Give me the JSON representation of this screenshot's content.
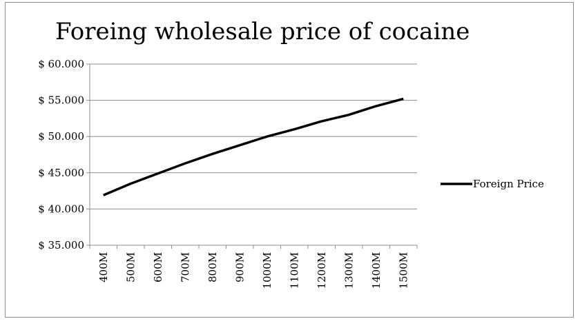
{
  "chart_data": {
    "type": "line",
    "title": "Foreing wholesale price of cocaine",
    "xlabel": "",
    "ylabel": "",
    "categories": [
      "400M",
      "500M",
      "600M",
      "700M",
      "800M",
      "900M",
      "1000M",
      "1100M",
      "1200M",
      "1300M",
      "1400M",
      "1500M"
    ],
    "series": [
      {
        "name": "Foreign Price",
        "values": [
          41900,
          43500,
          44900,
          46300,
          47600,
          48800,
          50000,
          51000,
          52100,
          53000,
          54200,
          55200
        ],
        "color": "#000000"
      }
    ],
    "ylim": [
      35000,
      60000
    ],
    "y_ticks": [
      35000,
      40000,
      45000,
      50000,
      55000,
      60000
    ],
    "y_tick_labels": [
      "$ 35.000",
      "$ 40.000",
      "$ 45.000",
      "$ 50.000",
      "$ 55.000",
      "$ 60.000"
    ],
    "grid": true,
    "legend_position": "right"
  }
}
